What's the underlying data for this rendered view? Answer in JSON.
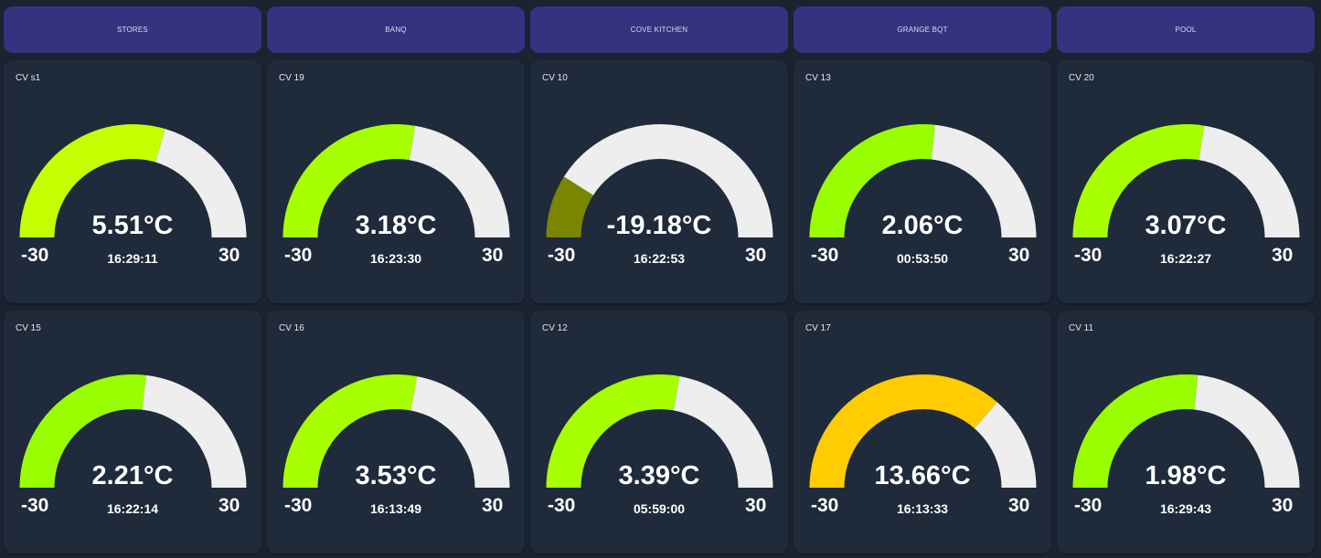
{
  "tabs": [
    "STORES",
    "BANQ",
    "COVE KITCHEN",
    "GRANGE BQT",
    "POOL"
  ],
  "gauge_range": {
    "min": -30,
    "max": 30,
    "min_label": "-30",
    "max_label": "30"
  },
  "track_color": "#eeeeee",
  "gauges": [
    {
      "title": "CV s1",
      "value": 5.51,
      "value_label": "5.51°C",
      "time": "16:29:11",
      "color": "#c6ff00"
    },
    {
      "title": "CV 19",
      "value": 3.18,
      "value_label": "3.18°C",
      "time": "16:23:30",
      "color": "#a8ff00"
    },
    {
      "title": "CV 10",
      "value": -19.18,
      "value_label": "-19.18°C",
      "time": "16:22:53",
      "color": "#7a8500"
    },
    {
      "title": "CV 13",
      "value": 2.06,
      "value_label": "2.06°C",
      "time": "00:53:50",
      "color": "#99ff00"
    },
    {
      "title": "CV 20",
      "value": 3.07,
      "value_label": "3.07°C",
      "time": "16:22:27",
      "color": "#a8ff00"
    },
    {
      "title": "CV 15",
      "value": 2.21,
      "value_label": "2.21°C",
      "time": "16:22:14",
      "color": "#99ff00"
    },
    {
      "title": "CV 16",
      "value": 3.53,
      "value_label": "3.53°C",
      "time": "16:13:49",
      "color": "#a8ff00"
    },
    {
      "title": "CV 12",
      "value": 3.39,
      "value_label": "3.39°C",
      "time": "05:59:00",
      "color": "#a8ff00"
    },
    {
      "title": "CV 17",
      "value": 13.66,
      "value_label": "13.66°C",
      "time": "16:13:33",
      "color": "#ffcc00"
    },
    {
      "title": "CV 11",
      "value": 1.98,
      "value_label": "1.98°C",
      "time": "16:29:43",
      "color": "#99ff00"
    }
  ]
}
